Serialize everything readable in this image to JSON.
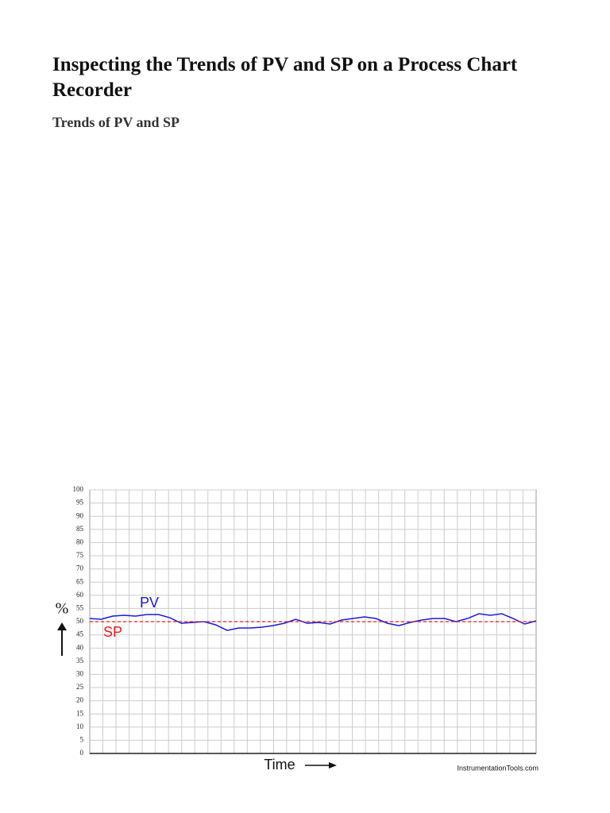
{
  "header": {
    "title": "Inspecting the Trends of PV and SP on a Process Chart Recorder",
    "subtitle": "Trends of PV and SP"
  },
  "chart_data": {
    "type": "line",
    "y_label": "%",
    "x_label": "Time",
    "source": "InstrumentationTools.com",
    "ylim": [
      0,
      100
    ],
    "yticks": [
      0,
      5,
      10,
      15,
      20,
      25,
      30,
      35,
      40,
      45,
      50,
      55,
      60,
      65,
      70,
      75,
      80,
      85,
      90,
      95,
      100
    ],
    "grid": true,
    "series": [
      {
        "name": "PV",
        "color": "#1a1ad6",
        "dashed": false,
        "values": [
          51.2,
          50.9,
          52.1,
          52.4,
          52.1,
          52.7,
          52.7,
          51.5,
          49.4,
          49.7,
          50,
          48.8,
          46.7,
          47.6,
          47.6,
          47.9,
          48.5,
          49.4,
          50.9,
          49.4,
          49.7,
          49.1,
          50.6,
          51.2,
          51.8,
          51.2,
          49.4,
          48.5,
          49.7,
          50.6,
          51.2,
          51.2,
          50,
          51.2,
          53,
          52.4,
          53,
          51.2,
          49.1,
          50.3
        ]
      },
      {
        "name": "SP",
        "color": "#e02020",
        "dashed": true,
        "values": [
          50,
          50
        ]
      }
    ]
  }
}
